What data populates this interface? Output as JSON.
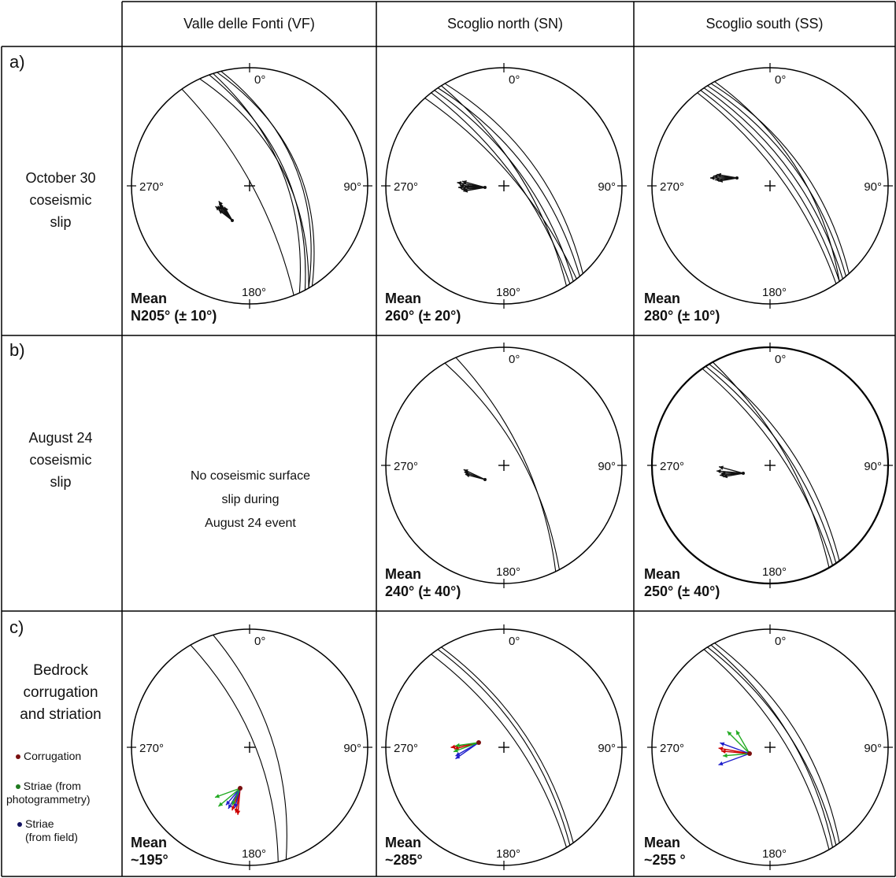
{
  "columns": [
    "Valle delle Fonti (VF)",
    "Scoglio north (SN)",
    "Scoglio south (SS)"
  ],
  "rows": [
    {
      "tag": "a)",
      "label": [
        "October 30",
        "coseismic",
        "slip"
      ]
    },
    {
      "tag": "b)",
      "label": [
        "August 24",
        "coseismic",
        "slip"
      ]
    },
    {
      "tag": "c)",
      "label": [
        "Bedrock",
        "corrugation",
        "and striation"
      ]
    }
  ],
  "directions": {
    "n": "0°",
    "e": "90°",
    "s": "180°",
    "w": "270°"
  },
  "no_data": [
    "No coseismic surface",
    "slip during",
    "August 24 event"
  ],
  "legend": {
    "corrugation": "Corrugation",
    "striae_photo": [
      "Striae (from",
      "photogrammetry)"
    ],
    "striae_field": [
      "Striae",
      "(from field)"
    ],
    "colors": {
      "corrugation": "#cc0000",
      "striae_photo": "#22aa22",
      "striae_field": "#1f1fcc"
    }
  },
  "panels": [
    {
      "id": "a-vf",
      "row": 0,
      "col": 0,
      "mean": [
        "Mean",
        "N205° (± 10°)"
      ],
      "trends": [
        205
      ],
      "color": "black"
    },
    {
      "id": "a-sn",
      "row": 0,
      "col": 1,
      "mean": [
        "Mean",
        "260° (± 20°)"
      ],
      "trends": [
        260
      ],
      "color": "black"
    },
    {
      "id": "a-ss",
      "row": 0,
      "col": 2,
      "mean": [
        "Mean",
        "280° (± 10°)"
      ],
      "trends": [
        280
      ],
      "color": "black"
    },
    {
      "id": "b-sn",
      "row": 1,
      "col": 1,
      "mean": [
        "Mean",
        "240° (± 40°)"
      ],
      "trends": [
        240
      ],
      "color": "black"
    },
    {
      "id": "b-ss",
      "row": 1,
      "col": 2,
      "mean": [
        "Mean",
        "250° (± 40°)"
      ],
      "trends": [
        250
      ],
      "color": "black"
    },
    {
      "id": "c-vf",
      "row": 2,
      "col": 0,
      "mean": [
        "Mean",
        "~195°"
      ],
      "trends": [
        195
      ],
      "color": "mixed"
    },
    {
      "id": "c-sn",
      "row": 2,
      "col": 1,
      "mean": [
        "Mean",
        "~285°"
      ],
      "trends": [
        285
      ],
      "color": "mixed"
    },
    {
      "id": "c-ss",
      "row": 2,
      "col": 2,
      "mean": [
        "Mean",
        "~255 °"
      ],
      "trends": [
        255
      ],
      "color": "mixed"
    }
  ]
}
